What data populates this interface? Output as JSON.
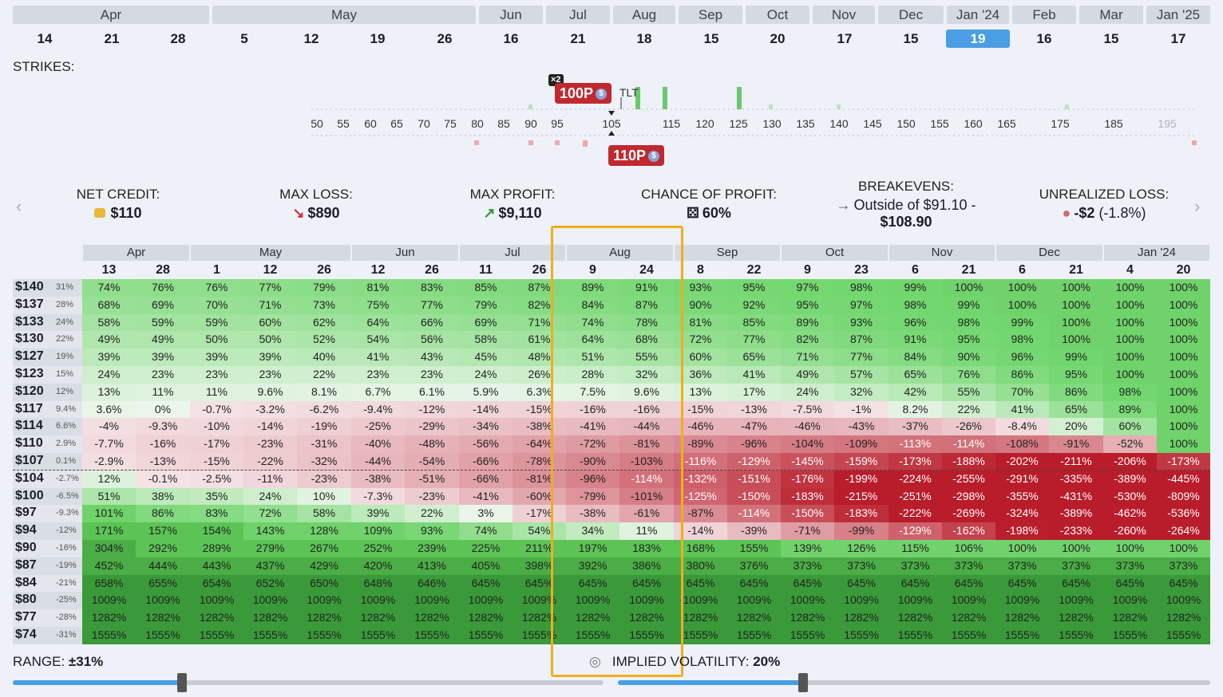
{
  "months": [
    "Apr",
    "May",
    "Jun",
    "Jul",
    "Aug",
    "Sep",
    "Oct",
    "Nov",
    "Dec",
    "Jan '24",
    "Feb",
    "Mar",
    "Jan '25"
  ],
  "days": [
    "14",
    "21",
    "28",
    "5",
    "12",
    "19",
    "26",
    "16",
    "21",
    "18",
    "15",
    "20",
    "17",
    "15",
    "19",
    "16",
    "15",
    "17"
  ],
  "selected_day_index": 14,
  "strikes_label": "STRIKES:",
  "strike_ticks": [
    "50",
    "55",
    "60",
    "65",
    "70",
    "75",
    "80",
    "85",
    "90",
    "95",
    "105",
    "115",
    "120",
    "125",
    "130",
    "135",
    "140",
    "145",
    "150",
    "155",
    "160",
    "165",
    "175",
    "185",
    "195"
  ],
  "current_price_label": "TLT",
  "badges": {
    "top_multiplier": "×2",
    "top_label": "100P",
    "bottom_label": "110P",
    "dollar_glyph": "$"
  },
  "stats": {
    "net_credit_title": "NET CREDIT:",
    "net_credit_value": "$110",
    "max_loss_title": "MAX LOSS:",
    "max_loss_value": "$890",
    "max_profit_title": "MAX PROFIT:",
    "max_profit_value": "$9,110",
    "chance_title": "CHANCE OF PROFIT:",
    "chance_value": "60%",
    "breakevens_title": "BREAKEVENS:",
    "breakevens_line1": "Outside of $91.10 -",
    "breakevens_line2": "$108.90",
    "unrealized_title": "UNREALIZED LOSS:",
    "unrealized_value": "-$2",
    "unrealized_pct": "(-1.8%)"
  },
  "table": {
    "month_groups": [
      {
        "label": "Apr",
        "span": 2
      },
      {
        "label": "May",
        "span": 3
      },
      {
        "label": "Jun",
        "span": 2
      },
      {
        "label": "Jul",
        "span": 2
      },
      {
        "label": "Aug",
        "span": 2
      },
      {
        "label": "Sep",
        "span": 2
      },
      {
        "label": "Oct",
        "span": 2
      },
      {
        "label": "Nov",
        "span": 2
      },
      {
        "label": "Dec",
        "span": 2
      },
      {
        "label": "Jan '24",
        "span": 2
      }
    ],
    "day_headers": [
      "13",
      "28",
      "1",
      "12",
      "26",
      "12",
      "26",
      "11",
      "26",
      "9",
      "24",
      "8",
      "22",
      "9",
      "23",
      "6",
      "21",
      "6",
      "21",
      "4",
      "20"
    ],
    "rows": [
      {
        "price": "$140",
        "pct": "31%",
        "cells": [
          "74%",
          "76%",
          "76%",
          "77%",
          "79%",
          "81%",
          "83%",
          "85%",
          "87%",
          "89%",
          "91%",
          "93%",
          "95%",
          "97%",
          "98%",
          "99%",
          "100%",
          "100%",
          "100%",
          "100%",
          "100%"
        ]
      },
      {
        "price": "$137",
        "pct": "28%",
        "cells": [
          "68%",
          "69%",
          "70%",
          "71%",
          "73%",
          "75%",
          "77%",
          "79%",
          "82%",
          "84%",
          "87%",
          "90%",
          "92%",
          "95%",
          "97%",
          "98%",
          "99%",
          "100%",
          "100%",
          "100%",
          "100%"
        ]
      },
      {
        "price": "$133",
        "pct": "24%",
        "cells": [
          "58%",
          "59%",
          "59%",
          "60%",
          "62%",
          "64%",
          "66%",
          "69%",
          "71%",
          "74%",
          "78%",
          "81%",
          "85%",
          "89%",
          "93%",
          "96%",
          "98%",
          "99%",
          "100%",
          "100%",
          "100%"
        ]
      },
      {
        "price": "$130",
        "pct": "22%",
        "cells": [
          "49%",
          "49%",
          "50%",
          "50%",
          "52%",
          "54%",
          "56%",
          "58%",
          "61%",
          "64%",
          "68%",
          "72%",
          "77%",
          "82%",
          "87%",
          "91%",
          "95%",
          "98%",
          "100%",
          "100%",
          "100%"
        ]
      },
      {
        "price": "$127",
        "pct": "19%",
        "cells": [
          "39%",
          "39%",
          "39%",
          "39%",
          "40%",
          "41%",
          "43%",
          "45%",
          "48%",
          "51%",
          "55%",
          "60%",
          "65%",
          "71%",
          "77%",
          "84%",
          "90%",
          "96%",
          "99%",
          "100%",
          "100%"
        ]
      },
      {
        "price": "$123",
        "pct": "15%",
        "cells": [
          "24%",
          "23%",
          "23%",
          "23%",
          "22%",
          "23%",
          "23%",
          "24%",
          "26%",
          "28%",
          "32%",
          "36%",
          "41%",
          "49%",
          "57%",
          "65%",
          "76%",
          "86%",
          "95%",
          "100%",
          "100%"
        ]
      },
      {
        "price": "$120",
        "pct": "12%",
        "cells": [
          "13%",
          "11%",
          "11%",
          "9.6%",
          "8.1%",
          "6.7%",
          "6.1%",
          "5.9%",
          "6.3%",
          "7.5%",
          "9.6%",
          "13%",
          "17%",
          "24%",
          "32%",
          "42%",
          "55%",
          "70%",
          "86%",
          "98%",
          "100%"
        ]
      },
      {
        "price": "$117",
        "pct": "9.4%",
        "cells": [
          "3.6%",
          "0%",
          "-0.7%",
          "-3.2%",
          "-6.2%",
          "-9.4%",
          "-12%",
          "-14%",
          "-15%",
          "-16%",
          "-16%",
          "-15%",
          "-13%",
          "-7.5%",
          "-1%",
          "8.2%",
          "22%",
          "41%",
          "65%",
          "89%",
          "100%"
        ]
      },
      {
        "price": "$114",
        "pct": "6.6%",
        "cells": [
          "-4%",
          "-9.3%",
          "-10%",
          "-14%",
          "-19%",
          "-25%",
          "-29%",
          "-34%",
          "-38%",
          "-41%",
          "-44%",
          "-46%",
          "-47%",
          "-46%",
          "-43%",
          "-37%",
          "-26%",
          "-8.4%",
          "20%",
          "60%",
          "100%"
        ]
      },
      {
        "price": "$110",
        "pct": "2.9%",
        "cells": [
          "-7.7%",
          "-16%",
          "-17%",
          "-23%",
          "-31%",
          "-40%",
          "-48%",
          "-56%",
          "-64%",
          "-72%",
          "-81%",
          "-89%",
          "-96%",
          "-104%",
          "-109%",
          "-113%",
          "-114%",
          "-108%",
          "-91%",
          "-52%",
          "100%"
        ]
      },
      {
        "price": "$107",
        "pct": "0.1%",
        "cells": [
          "-2.9%",
          "-13%",
          "-15%",
          "-22%",
          "-32%",
          "-44%",
          "-54%",
          "-66%",
          "-78%",
          "-90%",
          "-103%",
          "-116%",
          "-129%",
          "-145%",
          "-159%",
          "-173%",
          "-188%",
          "-202%",
          "-211%",
          "-206%",
          "-173%"
        ]
      },
      {
        "price": "$104",
        "pct": "-2.7%",
        "cells": [
          "12%",
          "-0.1%",
          "-2.5%",
          "-11%",
          "-23%",
          "-38%",
          "-51%",
          "-66%",
          "-81%",
          "-96%",
          "-114%",
          "-132%",
          "-151%",
          "-176%",
          "-199%",
          "-224%",
          "-255%",
          "-291%",
          "-335%",
          "-389%",
          "-445%"
        ]
      },
      {
        "price": "$100",
        "pct": "-6.5%",
        "cells": [
          "51%",
          "38%",
          "35%",
          "24%",
          "10%",
          "-7.3%",
          "-23%",
          "-41%",
          "-60%",
          "-79%",
          "-101%",
          "-125%",
          "-150%",
          "-183%",
          "-215%",
          "-251%",
          "-298%",
          "-355%",
          "-431%",
          "-530%",
          "-809%"
        ]
      },
      {
        "price": "$97",
        "pct": "-9.3%",
        "cells": [
          "101%",
          "86%",
          "83%",
          "72%",
          "58%",
          "39%",
          "22%",
          "3%",
          "-17%",
          "-38%",
          "-61%",
          "-87%",
          "-114%",
          "-150%",
          "-183%",
          "-222%",
          "-269%",
          "-324%",
          "-389%",
          "-462%",
          "-536%"
        ]
      },
      {
        "price": "$94",
        "pct": "-12%",
        "cells": [
          "171%",
          "157%",
          "154%",
          "143%",
          "128%",
          "109%",
          "93%",
          "74%",
          "54%",
          "34%",
          "11%",
          "-14%",
          "-39%",
          "-71%",
          "-99%",
          "-129%",
          "-162%",
          "-198%",
          "-233%",
          "-260%",
          "-264%"
        ]
      },
      {
        "price": "$90",
        "pct": "-16%",
        "cells": [
          "304%",
          "292%",
          "289%",
          "279%",
          "267%",
          "252%",
          "239%",
          "225%",
          "211%",
          "197%",
          "183%",
          "168%",
          "155%",
          "139%",
          "126%",
          "115%",
          "106%",
          "100%",
          "100%",
          "100%",
          "100%"
        ]
      },
      {
        "price": "$87",
        "pct": "-19%",
        "cells": [
          "452%",
          "444%",
          "443%",
          "437%",
          "429%",
          "420%",
          "413%",
          "405%",
          "398%",
          "392%",
          "386%",
          "380%",
          "376%",
          "373%",
          "373%",
          "373%",
          "373%",
          "373%",
          "373%",
          "373%",
          "373%"
        ]
      },
      {
        "price": "$84",
        "pct": "-21%",
        "cells": [
          "658%",
          "655%",
          "654%",
          "652%",
          "650%",
          "648%",
          "646%",
          "645%",
          "645%",
          "645%",
          "645%",
          "645%",
          "645%",
          "645%",
          "645%",
          "645%",
          "645%",
          "645%",
          "645%",
          "645%",
          "645%"
        ]
      },
      {
        "price": "$80",
        "pct": "-25%",
        "cells": [
          "1009%",
          "1009%",
          "1009%",
          "1009%",
          "1009%",
          "1009%",
          "1009%",
          "1009%",
          "1009%",
          "1009%",
          "1009%",
          "1009%",
          "1009%",
          "1009%",
          "1009%",
          "1009%",
          "1009%",
          "1009%",
          "1009%",
          "1009%",
          "1009%"
        ]
      },
      {
        "price": "$77",
        "pct": "-28%",
        "cells": [
          "1282%",
          "1282%",
          "1282%",
          "1282%",
          "1282%",
          "1282%",
          "1282%",
          "1282%",
          "1282%",
          "1282%",
          "1282%",
          "1282%",
          "1282%",
          "1282%",
          "1282%",
          "1282%",
          "1282%",
          "1282%",
          "1282%",
          "1282%",
          "1282%"
        ]
      },
      {
        "price": "$74",
        "pct": "-31%",
        "cells": [
          "1555%",
          "1555%",
          "1555%",
          "1555%",
          "1555%",
          "1555%",
          "1555%",
          "1555%",
          "1555%",
          "1555%",
          "1555%",
          "1555%",
          "1555%",
          "1555%",
          "1555%",
          "1555%",
          "1555%",
          "1555%",
          "1555%",
          "1555%",
          "1555%"
        ]
      }
    ]
  },
  "range": {
    "label": "RANGE:",
    "value": "±31%"
  },
  "iv": {
    "label": "IMPLIED VOLATILITY:",
    "value": "20%"
  },
  "colors": {
    "green_strong": "#3a9a3a",
    "green_light": "#dff5df",
    "red_strong": "#b71c2a",
    "red_light": "#f6dde0",
    "slider": "#4a9ee3",
    "highlight": "#f0ad1e"
  },
  "icons": {
    "prev": "chevron-left-icon",
    "next": "chevron-right-icon"
  }
}
